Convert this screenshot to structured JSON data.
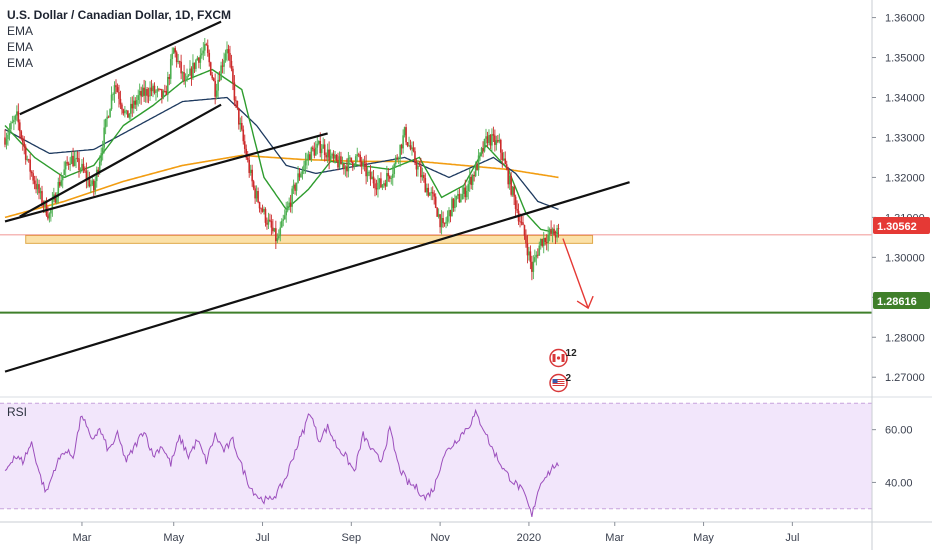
{
  "header": {
    "title": "U.S. Dollar / Canadian Dollar, 1D, FXCM",
    "indicators": [
      "EMA",
      "EMA",
      "EMA"
    ]
  },
  "rsi_pane": {
    "label": "RSI"
  },
  "price_axis": {
    "ticks": [
      "1.36000",
      "1.35000",
      "1.34000",
      "1.33000",
      "1.32000",
      "1.31000",
      "1.30000",
      "1.29000",
      "1.28000",
      "1.27000"
    ],
    "current_price_label": "1.30562",
    "level_label": "1.28616"
  },
  "rsi_axis": {
    "ticks": [
      "60.00",
      "40.00"
    ]
  },
  "time_axis": {
    "ticks": [
      "Mar",
      "May",
      "Jul",
      "Sep",
      "Nov",
      "2020",
      "Mar",
      "May",
      "Jul"
    ]
  },
  "events": [
    {
      "label": "12",
      "flag": "canada-flag-icon"
    },
    {
      "label": "2",
      "flag": "usa-flag-icon"
    }
  ],
  "colors": {
    "bull": "#26a69a",
    "bear": "#cc2a2a",
    "bull_candle": "#4caf50",
    "ema_fast": "#2e9c2e",
    "ema_mid": "#1e3a5f",
    "ema_slow": "#f29d12",
    "level_line": "#3f7f2a",
    "price_line": "#e53935",
    "rsi_line": "#9c4fbd",
    "rsi_band": "#f2e6fb",
    "zone_fill": "#fbe1a8",
    "zone_stroke": "#e0a94a"
  },
  "chart_data": [
    {
      "type": "candlestick",
      "title": "U.S. Dollar / Canadian Dollar, 1D, FXCM",
      "x_ticks": [
        "Mar",
        "May",
        "Jul",
        "Sep",
        "Nov",
        "2020",
        "Mar",
        "May",
        "Jul"
      ],
      "y_ticks": [
        1.36,
        1.35,
        1.34,
        1.33,
        1.32,
        1.31,
        1.3,
        1.29,
        1.28,
        1.27
      ],
      "ylim": [
        1.2648,
        1.3644
      ],
      "legend": [
        "EMA",
        "EMA",
        "EMA"
      ],
      "close_path": [
        {
          "i": 0,
          "v": 1.33
        },
        {
          "i": 8,
          "v": 1.335
        },
        {
          "i": 16,
          "v": 1.323
        },
        {
          "i": 24,
          "v": 1.315
        },
        {
          "i": 30,
          "v": 1.3105
        },
        {
          "i": 36,
          "v": 1.318
        },
        {
          "i": 44,
          "v": 1.325
        },
        {
          "i": 52,
          "v": 1.322
        },
        {
          "i": 60,
          "v": 1.317
        },
        {
          "i": 68,
          "v": 1.333
        },
        {
          "i": 74,
          "v": 1.344
        },
        {
          "i": 82,
          "v": 1.335
        },
        {
          "i": 90,
          "v": 1.34
        },
        {
          "i": 98,
          "v": 1.342
        },
        {
          "i": 108,
          "v": 1.34
        },
        {
          "i": 114,
          "v": 1.352
        },
        {
          "i": 122,
          "v": 1.343
        },
        {
          "i": 130,
          "v": 1.35
        },
        {
          "i": 136,
          "v": 1.352
        },
        {
          "i": 142,
          "v": 1.342
        },
        {
          "i": 150,
          "v": 1.353
        },
        {
          "i": 156,
          "v": 1.338
        },
        {
          "i": 162,
          "v": 1.327
        },
        {
          "i": 168,
          "v": 1.317
        },
        {
          "i": 176,
          "v": 1.31
        },
        {
          "i": 184,
          "v": 1.304
        },
        {
          "i": 190,
          "v": 1.311
        },
        {
          "i": 198,
          "v": 1.32
        },
        {
          "i": 206,
          "v": 1.326
        },
        {
          "i": 214,
          "v": 1.328
        },
        {
          "i": 222,
          "v": 1.324
        },
        {
          "i": 230,
          "v": 1.323
        },
        {
          "i": 238,
          "v": 1.325
        },
        {
          "i": 246,
          "v": 1.32
        },
        {
          "i": 254,
          "v": 1.318
        },
        {
          "i": 262,
          "v": 1.322
        },
        {
          "i": 270,
          "v": 1.331
        },
        {
          "i": 276,
          "v": 1.325
        },
        {
          "i": 284,
          "v": 1.318
        },
        {
          "i": 290,
          "v": 1.314
        },
        {
          "i": 296,
          "v": 1.307
        },
        {
          "i": 302,
          "v": 1.313
        },
        {
          "i": 310,
          "v": 1.316
        },
        {
          "i": 318,
          "v": 1.322
        },
        {
          "i": 326,
          "v": 1.33
        },
        {
          "i": 334,
          "v": 1.328
        },
        {
          "i": 340,
          "v": 1.32
        },
        {
          "i": 346,
          "v": 1.312
        },
        {
          "i": 352,
          "v": 1.304
        },
        {
          "i": 356,
          "v": 1.297
        },
        {
          "i": 362,
          "v": 1.304
        },
        {
          "i": 368,
          "v": 1.3058
        },
        {
          "i": 374,
          "v": 1.306
        }
      ],
      "ema_fast": [
        {
          "i": 0,
          "v": 1.333
        },
        {
          "i": 20,
          "v": 1.325
        },
        {
          "i": 40,
          "v": 1.32
        },
        {
          "i": 60,
          "v": 1.323
        },
        {
          "i": 80,
          "v": 1.333
        },
        {
          "i": 100,
          "v": 1.338
        },
        {
          "i": 120,
          "v": 1.344
        },
        {
          "i": 140,
          "v": 1.347
        },
        {
          "i": 160,
          "v": 1.342
        },
        {
          "i": 175,
          "v": 1.32
        },
        {
          "i": 190,
          "v": 1.312
        },
        {
          "i": 205,
          "v": 1.317
        },
        {
          "i": 220,
          "v": 1.324
        },
        {
          "i": 240,
          "v": 1.323
        },
        {
          "i": 260,
          "v": 1.322
        },
        {
          "i": 280,
          "v": 1.325
        },
        {
          "i": 295,
          "v": 1.315
        },
        {
          "i": 310,
          "v": 1.318
        },
        {
          "i": 325,
          "v": 1.328
        },
        {
          "i": 340,
          "v": 1.322
        },
        {
          "i": 352,
          "v": 1.311
        },
        {
          "i": 362,
          "v": 1.307
        },
        {
          "i": 374,
          "v": 1.306
        }
      ],
      "ema_mid": [
        {
          "i": 0,
          "v": 1.332
        },
        {
          "i": 30,
          "v": 1.326
        },
        {
          "i": 60,
          "v": 1.327
        },
        {
          "i": 90,
          "v": 1.333
        },
        {
          "i": 120,
          "v": 1.339
        },
        {
          "i": 150,
          "v": 1.34
        },
        {
          "i": 170,
          "v": 1.333
        },
        {
          "i": 190,
          "v": 1.323
        },
        {
          "i": 210,
          "v": 1.321
        },
        {
          "i": 240,
          "v": 1.323
        },
        {
          "i": 270,
          "v": 1.325
        },
        {
          "i": 300,
          "v": 1.32
        },
        {
          "i": 330,
          "v": 1.325
        },
        {
          "i": 345,
          "v": 1.321
        },
        {
          "i": 360,
          "v": 1.314
        },
        {
          "i": 374,
          "v": 1.312
        }
      ],
      "ema_slow": [
        {
          "i": 0,
          "v": 1.31
        },
        {
          "i": 40,
          "v": 1.314
        },
        {
          "i": 80,
          "v": 1.319
        },
        {
          "i": 120,
          "v": 1.323
        },
        {
          "i": 160,
          "v": 1.3255
        },
        {
          "i": 200,
          "v": 1.3245
        },
        {
          "i": 240,
          "v": 1.324
        },
        {
          "i": 280,
          "v": 1.324
        },
        {
          "i": 310,
          "v": 1.323
        },
        {
          "i": 340,
          "v": 1.322
        },
        {
          "i": 374,
          "v": 1.32
        }
      ],
      "trendlines": [
        {
          "i1": 10,
          "v1": 1.3102,
          "i2": 146,
          "v2": 1.3382
        },
        {
          "i1": 10,
          "v1": 1.3358,
          "i2": 146,
          "v2": 1.359
        },
        {
          "i1": 0,
          "v1": 1.2714,
          "i2": 422,
          "v2": 1.3188
        },
        {
          "i1": 0,
          "v1": 1.309,
          "i2": 218,
          "v2": 1.331
        }
      ],
      "support_zone": {
        "from_i": 14,
        "to_i": 397,
        "low": 1.3035,
        "high": 1.3055
      },
      "horizontal_level": 1.28616,
      "current_price": 1.30562,
      "projection_arrow": {
        "from_i": 377,
        "from_v": 1.3047,
        "to_i": 394,
        "to_v": 1.2873
      }
    },
    {
      "type": "line",
      "title": "RSI",
      "y_ticks": [
        60,
        40
      ],
      "ylim": [
        25,
        72
      ],
      "band": [
        30,
        70
      ],
      "values": [
        {
          "i": 0,
          "v": 44
        },
        {
          "i": 6,
          "v": 50
        },
        {
          "i": 12,
          "v": 48
        },
        {
          "i": 18,
          "v": 55
        },
        {
          "i": 24,
          "v": 42
        },
        {
          "i": 28,
          "v": 36
        },
        {
          "i": 34,
          "v": 46
        },
        {
          "i": 40,
          "v": 52
        },
        {
          "i": 46,
          "v": 50
        },
        {
          "i": 52,
          "v": 66
        },
        {
          "i": 58,
          "v": 56
        },
        {
          "i": 64,
          "v": 60
        },
        {
          "i": 70,
          "v": 52
        },
        {
          "i": 76,
          "v": 58
        },
        {
          "i": 82,
          "v": 48
        },
        {
          "i": 88,
          "v": 54
        },
        {
          "i": 94,
          "v": 60
        },
        {
          "i": 100,
          "v": 50
        },
        {
          "i": 106,
          "v": 54
        },
        {
          "i": 112,
          "v": 47
        },
        {
          "i": 118,
          "v": 57
        },
        {
          "i": 124,
          "v": 50
        },
        {
          "i": 130,
          "v": 56
        },
        {
          "i": 136,
          "v": 48
        },
        {
          "i": 142,
          "v": 58
        },
        {
          "i": 148,
          "v": 52
        },
        {
          "i": 154,
          "v": 56
        },
        {
          "i": 160,
          "v": 46
        },
        {
          "i": 166,
          "v": 38
        },
        {
          "i": 172,
          "v": 34
        },
        {
          "i": 178,
          "v": 33
        },
        {
          "i": 184,
          "v": 36
        },
        {
          "i": 190,
          "v": 42
        },
        {
          "i": 196,
          "v": 52
        },
        {
          "i": 202,
          "v": 60
        },
        {
          "i": 206,
          "v": 67
        },
        {
          "i": 212,
          "v": 56
        },
        {
          "i": 218,
          "v": 61
        },
        {
          "i": 224,
          "v": 54
        },
        {
          "i": 230,
          "v": 50
        },
        {
          "i": 236,
          "v": 44
        },
        {
          "i": 242,
          "v": 58
        },
        {
          "i": 248,
          "v": 52
        },
        {
          "i": 254,
          "v": 48
        },
        {
          "i": 260,
          "v": 60
        },
        {
          "i": 266,
          "v": 46
        },
        {
          "i": 272,
          "v": 40
        },
        {
          "i": 278,
          "v": 38
        },
        {
          "i": 284,
          "v": 34
        },
        {
          "i": 290,
          "v": 38
        },
        {
          "i": 296,
          "v": 50
        },
        {
          "i": 302,
          "v": 54
        },
        {
          "i": 308,
          "v": 58
        },
        {
          "i": 314,
          "v": 62
        },
        {
          "i": 318,
          "v": 66
        },
        {
          "i": 324,
          "v": 60
        },
        {
          "i": 328,
          "v": 54
        },
        {
          "i": 332,
          "v": 50
        },
        {
          "i": 338,
          "v": 44
        },
        {
          "i": 344,
          "v": 40
        },
        {
          "i": 348,
          "v": 38
        },
        {
          "i": 352,
          "v": 34
        },
        {
          "i": 356,
          "v": 27
        },
        {
          "i": 360,
          "v": 37
        },
        {
          "i": 364,
          "v": 42
        },
        {
          "i": 368,
          "v": 44
        },
        {
          "i": 372,
          "v": 47
        },
        {
          "i": 374,
          "v": 45
        }
      ]
    }
  ]
}
